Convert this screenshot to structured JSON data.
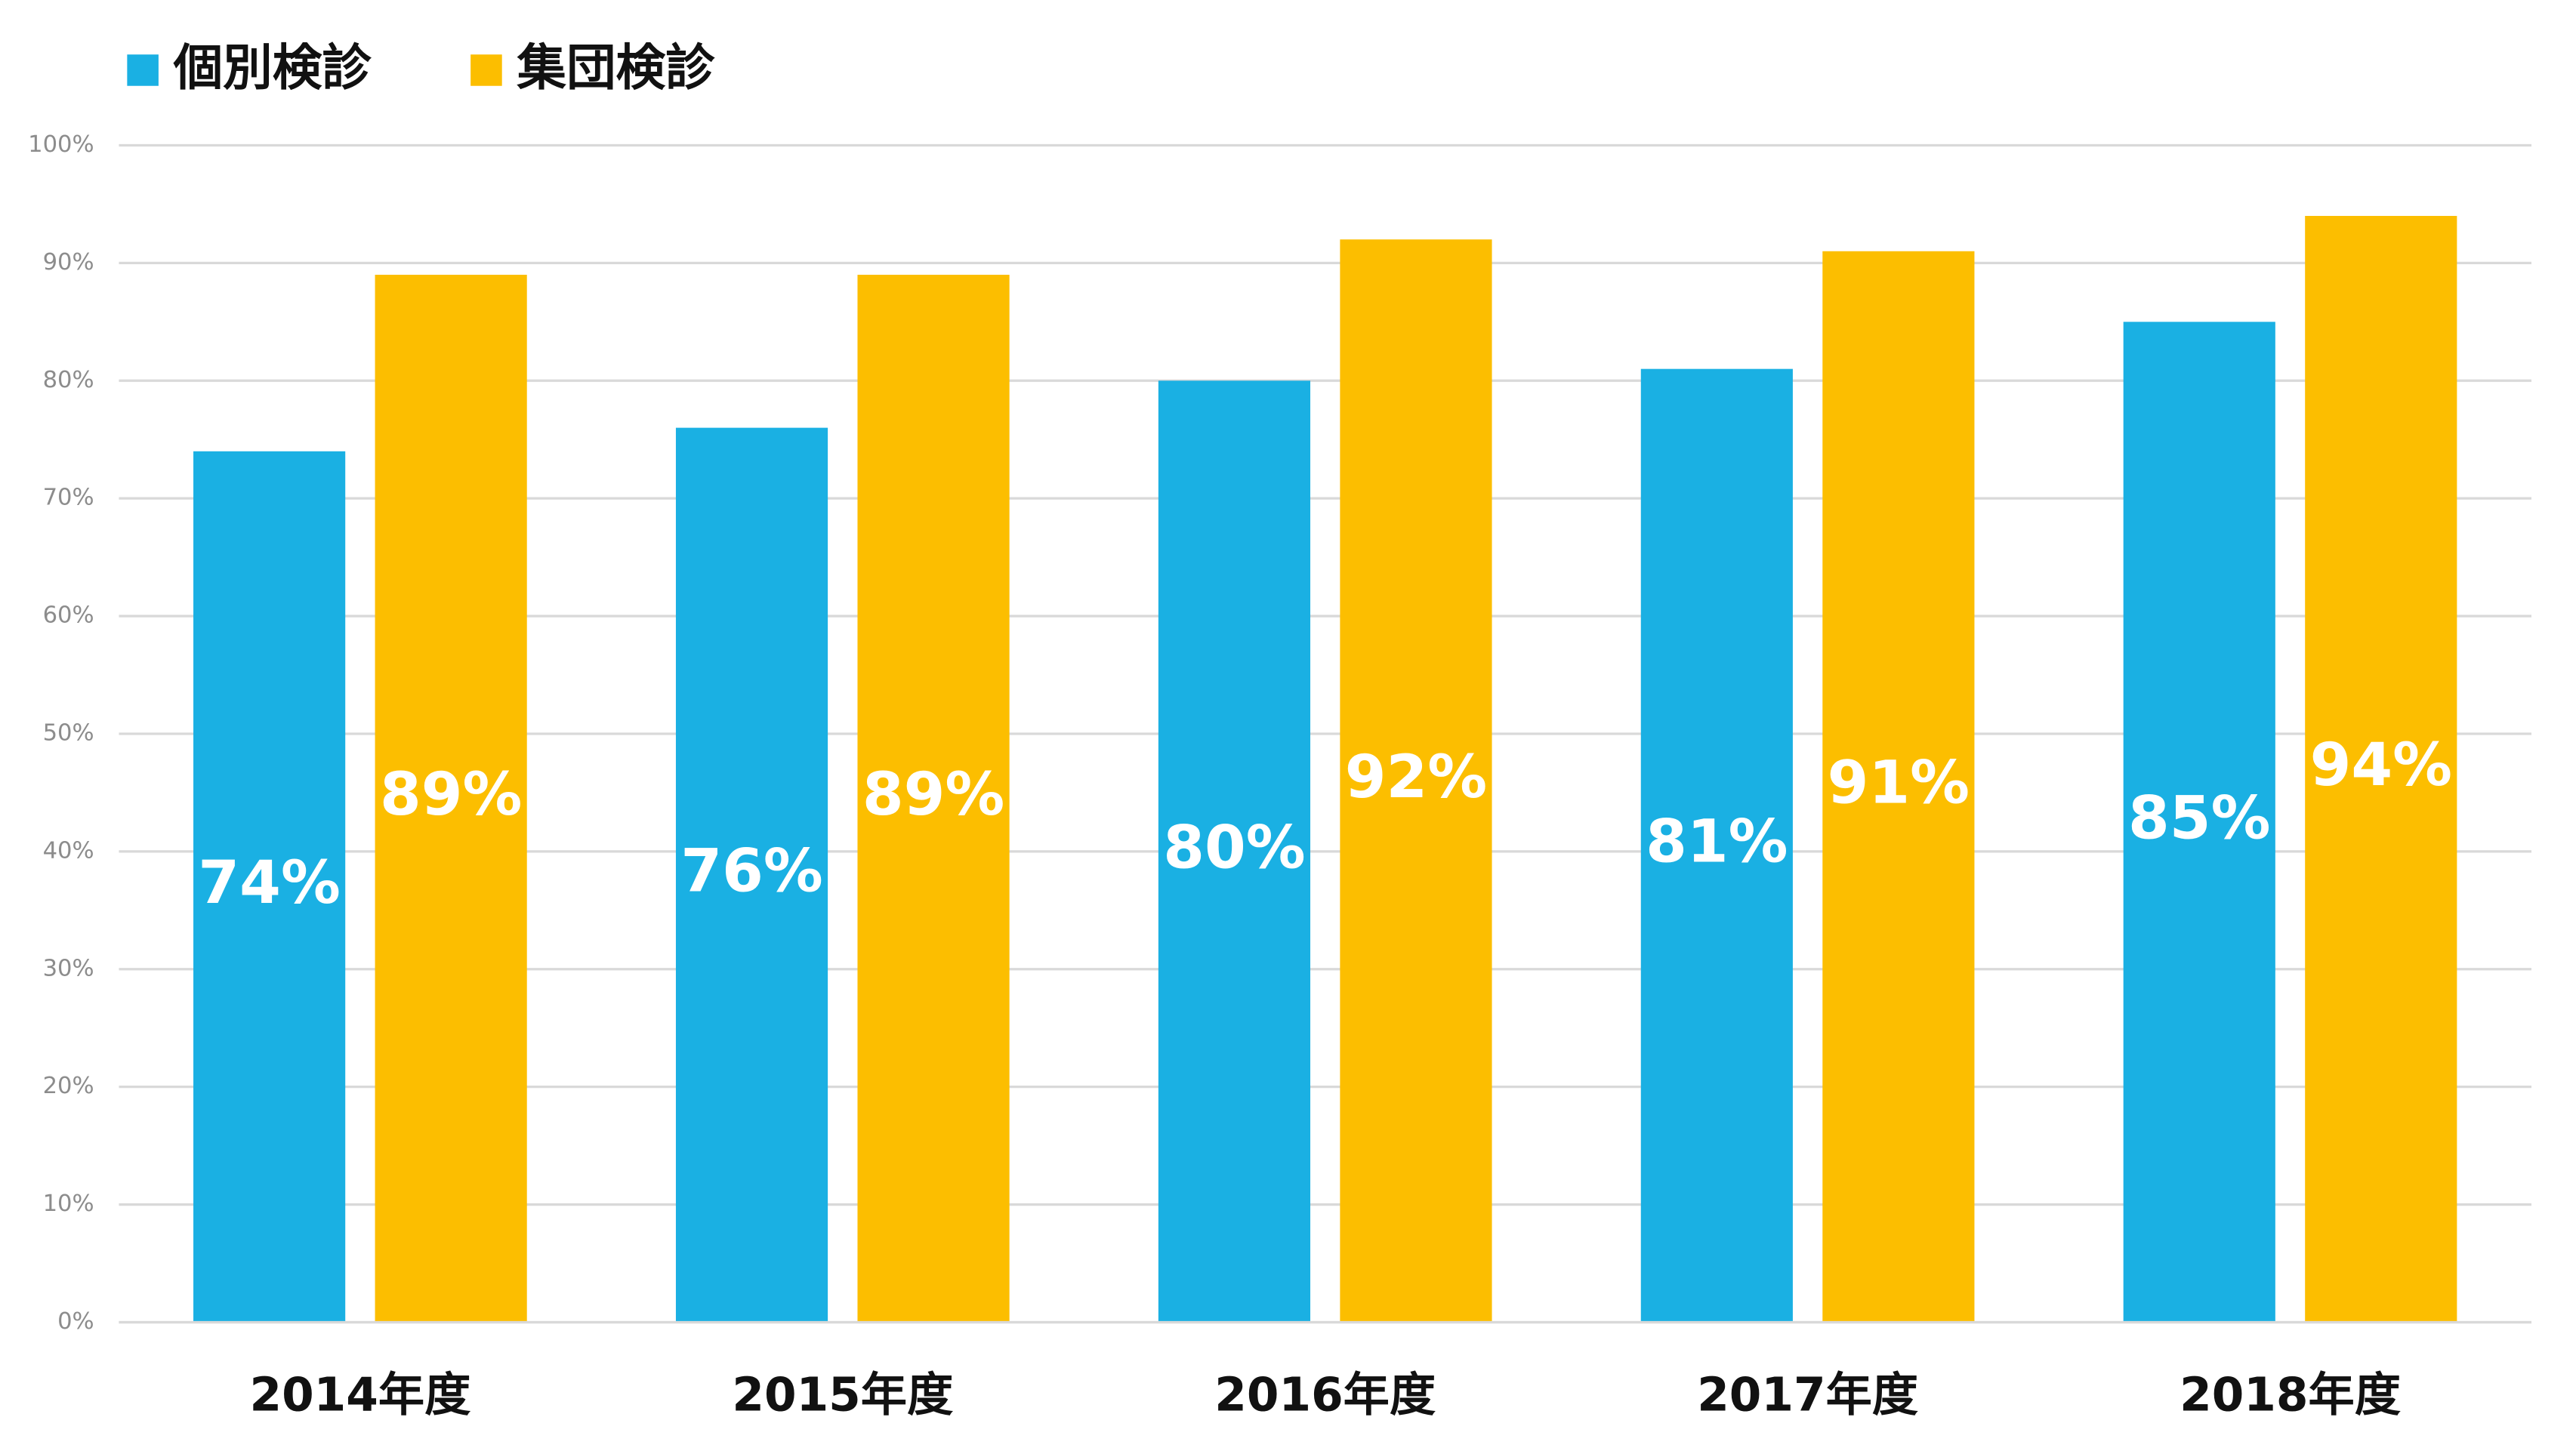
{
  "chart_data": {
    "type": "bar",
    "categories": [
      "2014年度",
      "2015年度",
      "2016年度",
      "2017年度",
      "2018年度"
    ],
    "series": [
      {
        "name": "個別検診",
        "color": "#1ab0e3",
        "values": [
          74,
          76,
          80,
          81,
          85
        ],
        "value_labels": [
          "74%",
          "76%",
          "80%",
          "81%",
          "85%"
        ]
      },
      {
        "name": "集団検診",
        "color": "#fcbe00",
        "values": [
          89,
          89,
          92,
          91,
          94
        ],
        "value_labels": [
          "89%",
          "89%",
          "92%",
          "91%",
          "94%"
        ]
      }
    ],
    "ylim": [
      0,
      100
    ],
    "yticks": [
      {
        "value": 0,
        "label": "0%"
      },
      {
        "value": 10,
        "label": "10%"
      },
      {
        "value": 20,
        "label": "20%"
      },
      {
        "value": 30,
        "label": "30%"
      },
      {
        "value": 40,
        "label": "40%"
      },
      {
        "value": 50,
        "label": "50%"
      },
      {
        "value": 60,
        "label": "60%"
      },
      {
        "value": 70,
        "label": "70%"
      },
      {
        "value": 80,
        "label": "80%"
      },
      {
        "value": 90,
        "label": "90%"
      },
      {
        "value": 100,
        "label": "100%"
      }
    ],
    "grid": true,
    "legend": "top-left"
  }
}
